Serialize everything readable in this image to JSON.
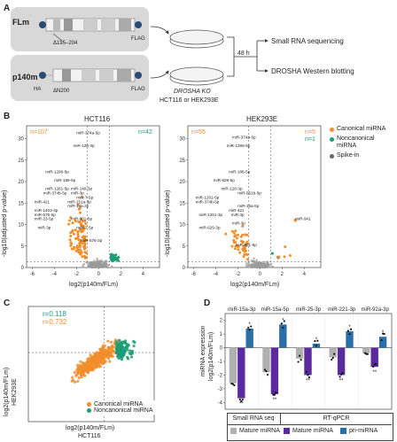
{
  "panel_letters": {
    "A": "A",
    "B": "B",
    "C": "C",
    "D": "D"
  },
  "panel_a": {
    "construct1_label": "FLm",
    "construct1_deletion": "Δ195–204",
    "construct2_label": "p140m",
    "construct2_deletion": "ΔN200",
    "tag_n": "HA",
    "tag_c": "FLAG",
    "cells_label": "DROSHA KO",
    "cells_sublabel": "HCT116 or HEK293E",
    "time_label": "48 h",
    "output1": "Small RNA sequencing",
    "output2": "DROSHA Western blotting"
  },
  "panel_b": {
    "left_title": "HCT116",
    "right_title": "HEK293E",
    "ylabel": "-log10(adjusted p-value)",
    "xlabel": "log2(p140m/FLm)",
    "left_counts": {
      "down": "n=107",
      "up": "n=42"
    },
    "right_counts": {
      "down": "n=55",
      "up_canon": "n=5",
      "up_noncanon": "n=1"
    },
    "left_yticks": [
      "0",
      "5",
      "10",
      "15",
      "20",
      "25",
      "30"
    ],
    "right_yticks": [
      "0",
      "5",
      "10",
      "15",
      "20",
      "25",
      "30"
    ],
    "left_xticks": [
      "-6",
      "-4",
      "-2",
      "0",
      "2",
      "4"
    ],
    "right_xticks": [
      "-6",
      "-4",
      "-2",
      "0",
      "2",
      "4"
    ],
    "left_labels": [
      "miR-374a-5p",
      "miR-128-3p",
      "miR-1296-5p",
      "miR-186-5p",
      "miR-1261-5p",
      "miR-374b-5p",
      "miR-421",
      "miR-140-3p",
      "miR-3p",
      "miR-7-5p",
      "miR-151a-3p",
      "miR-19a-3p",
      "miR-1403-3p",
      "miR-576-5p",
      "miR-23-5p",
      "miR-301-5p",
      "miR-7-5p",
      "miR-3p",
      "miR-576-3p"
    ],
    "right_labels": [
      "miR-374a-5p",
      "miR-1296-5p",
      "miR-186-5p",
      "miR-629-5p",
      "miR-128-3p",
      "miR-551b-5p",
      "miR-1261-5p",
      "miR-374b-5p",
      "miR-15a-5p",
      "miR-421",
      "miR-3p",
      "miR-1261-3p",
      "miR-3p",
      "miR-629-3p",
      "miR-651-5p",
      "miR-941"
    ],
    "legend": [
      {
        "label": "Canonical miRNA",
        "color": "#f28e2b"
      },
      {
        "label": "Noncanonical miRNA",
        "color": "#1b9e77"
      },
      {
        "label": "Spike-in",
        "color": "#666666"
      }
    ]
  },
  "panel_c": {
    "r_teal": "r=0.118",
    "r_orange": "r=0.732",
    "xlabel": "log2(p140m/FLm)",
    "xlabel2": "HCT116",
    "ylabel": "log2(p140m/FLm)",
    "ylabel2": "HEK293E",
    "legend": [
      {
        "label": "Canonical miRNA",
        "color": "#f28e2b"
      },
      {
        "label": "Noncanonical miRNA",
        "color": "#1b9e77"
      }
    ]
  },
  "panel_d": {
    "categories": [
      "miR-15a-3p",
      "miR-15a-5p",
      "miR-25-3p",
      "miR-221-3p",
      "miR-92a-3p"
    ],
    "ylabel": "miRNA expression",
    "ylabel2": "log2(p140m/FLm)",
    "yticks": [
      "-4",
      "-3",
      "-2",
      "-1",
      "0",
      "1",
      "2"
    ],
    "series": [
      {
        "name": "Mature miRNA",
        "group": "Small RNA seq",
        "color": "#b0b0b0",
        "values": [
          -2.6,
          -1.8,
          -0.8,
          -0.7,
          -0.4
        ]
      },
      {
        "name": "Mature miRNA",
        "group": "RT-qPCR",
        "color": "#5b2a9e",
        "values": [
          -3.7,
          -3.4,
          -2.0,
          -2.0,
          -1.4
        ]
      },
      {
        "name": "pri-miRNA",
        "group": "RT-qPCR",
        "color": "#2a6fa8",
        "values": [
          1.4,
          1.7,
          0.3,
          1.2,
          0.8
        ]
      }
    ],
    "legend_group1": "Small RNA seq",
    "legend_group2": "RT-qPCR"
  },
  "chart_data": [
    {
      "type": "bar",
      "title": "",
      "categories": [
        "miR-15a-3p",
        "miR-15a-5p",
        "miR-25-3p",
        "miR-221-3p",
        "miR-92a-3p"
      ],
      "series": [
        {
          "name": "Mature miRNA (Small RNA seq)",
          "values": [
            -2.6,
            -1.8,
            -0.8,
            -0.7,
            -0.4
          ]
        },
        {
          "name": "Mature miRNA (RT-qPCR)",
          "values": [
            -3.7,
            -3.4,
            -2.0,
            -2.0,
            -1.4
          ]
        },
        {
          "name": "pri-miRNA (RT-qPCR)",
          "values": [
            1.4,
            1.7,
            0.3,
            1.2,
            0.8
          ]
        }
      ],
      "ylabel": "miRNA expression log2(p140m/FLm)",
      "ylim": [
        -4.5,
        2.5
      ]
    }
  ]
}
